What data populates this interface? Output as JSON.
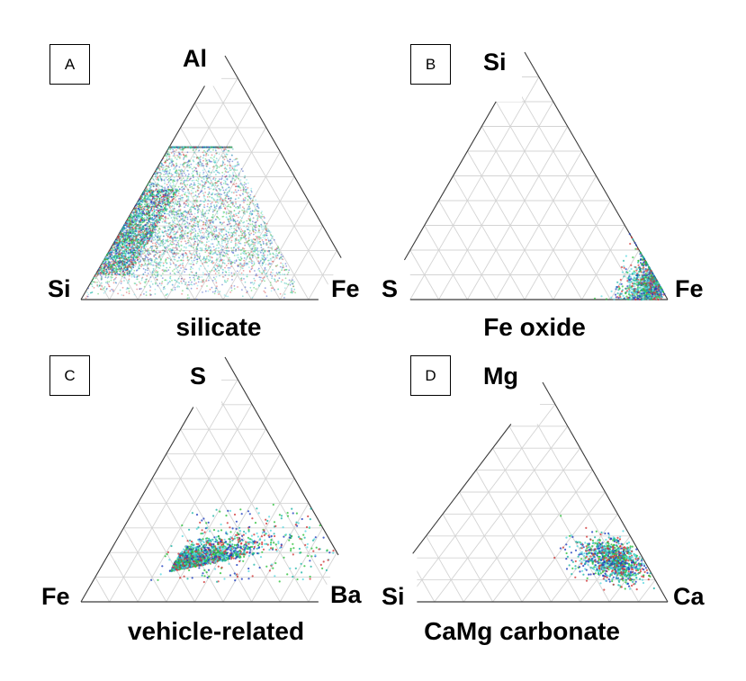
{
  "chart_data": [
    {
      "type": "scatter",
      "subtype": "ternary",
      "panel": "A",
      "title": "silicate",
      "vertices": {
        "top": "Al",
        "left": "Si",
        "right": "Fe"
      },
      "grid": {
        "on": true,
        "divisions": 10
      },
      "series_colors": [
        "#1f3fbf",
        "#1fb5a8",
        "#2ec23c",
        "#d23a3a",
        "#5ad8e0"
      ],
      "cluster": {
        "description": "dense band from Si corner extending toward Al ~0.6 and Fe ~0.7; densest near Si-Al edge",
        "Al_range": [
          0.0,
          0.62
        ],
        "Fe_range": [
          0.0,
          0.75
        ],
        "Si_range": [
          0.1,
          1.0
        ]
      }
    },
    {
      "type": "scatter",
      "subtype": "ternary",
      "panel": "B",
      "title": "Fe oxide",
      "vertices": {
        "top": "Si",
        "left": "S",
        "right": "Fe"
      },
      "grid": {
        "on": true,
        "divisions": 10
      },
      "series_colors": [
        "#1f3fbf",
        "#1fb5a8",
        "#2ec23c",
        "#d23a3a",
        "#5ad8e0"
      ],
      "cluster": {
        "description": "tight cluster at Fe corner",
        "Fe_range": [
          0.78,
          1.0
        ],
        "Si_range": [
          0.0,
          0.2
        ],
        "S_range": [
          0.0,
          0.2
        ]
      }
    },
    {
      "type": "scatter",
      "subtype": "ternary",
      "panel": "C",
      "title": "vehicle-related",
      "vertices": {
        "top": "S",
        "left": "Fe",
        "right": "Ba"
      },
      "grid": {
        "on": true,
        "divisions": 10
      },
      "series_colors": [
        "#1f3fbf",
        "#1fb5a8",
        "#2ec23c",
        "#d23a3a",
        "#5ad8e0"
      ],
      "cluster": {
        "description": "elongated cluster near base from Fe-rich toward Ba-rich, S mostly 0.05–0.35",
        "S_range": [
          0.02,
          0.55
        ],
        "Ba_range": [
          0.1,
          0.8
        ],
        "Fe_range": [
          0.1,
          0.9
        ]
      }
    },
    {
      "type": "scatter",
      "subtype": "ternary",
      "panel": "D",
      "title": "CaMg carbonate",
      "vertices": {
        "top": "Mg",
        "left": "Si",
        "right": "Ca"
      },
      "grid": {
        "on": true,
        "divisions": 10
      },
      "series_colors": [
        "#1f3fbf",
        "#1fb5a8",
        "#2ec23c",
        "#d23a3a",
        "#5ad8e0"
      ],
      "cluster": {
        "description": "cluster near Ca-Mg edge, Mg ~0.15–0.35, Ca ~0.55–0.8",
        "Mg_range": [
          0.12,
          0.48
        ],
        "Ca_range": [
          0.5,
          0.85
        ],
        "Si_range": [
          0.0,
          0.3
        ]
      }
    }
  ],
  "panels": {
    "A": {
      "badge": "A",
      "top": "Al",
      "left": "Si",
      "right": "Fe",
      "caption": "silicate"
    },
    "B": {
      "badge": "B",
      "top": "Si",
      "left": "S",
      "right": "Fe",
      "caption": "Fe oxide"
    },
    "C": {
      "badge": "C",
      "top": "S",
      "left": "Fe",
      "right": "Ba",
      "caption": "vehicle-related"
    },
    "D": {
      "badge": "D",
      "top": "Mg",
      "left": "Si",
      "right": "Ca",
      "caption": "CaMg carbonate"
    }
  }
}
